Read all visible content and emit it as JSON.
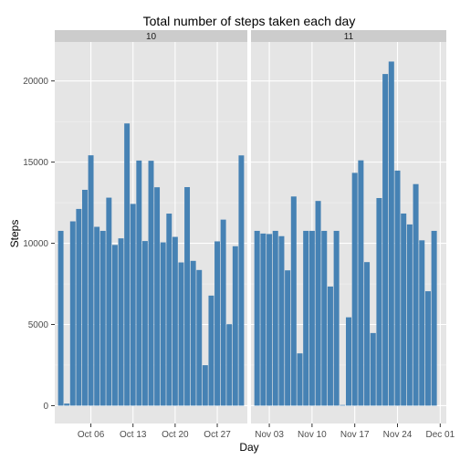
{
  "chart_data": {
    "type": "bar",
    "title": "Total number of steps taken each day",
    "xlabel": "Day",
    "ylabel": "Steps",
    "ylim": [
      -1100,
      22400
    ],
    "yticks": [
      0,
      5000,
      10000,
      15000,
      20000
    ],
    "bar_color": "#4682b4",
    "panel_background": "#e5e5e5",
    "grid_color": "#ffffff",
    "strip_background": "#cccccc",
    "facets": [
      {
        "label": "10",
        "start": "2012-10-01",
        "xlim": [
          "2012-09-30",
          "2012-11-01"
        ],
        "xticks": [
          "Oct 06",
          "Oct 13",
          "Oct 20",
          "Oct 27"
        ],
        "xtick_dates": [
          "2012-10-06",
          "2012-10-13",
          "2012-10-20",
          "2012-10-27"
        ],
        "values": [
          10766,
          126,
          11352,
          12116,
          13294,
          15420,
          11015,
          10766,
          12811,
          9900,
          10304,
          17382,
          12426,
          15098,
          10139,
          15084,
          13452,
          10056,
          11829,
          10395,
          8821,
          13460,
          8918,
          8355,
          2492,
          6778,
          10119,
          11458,
          5018,
          9819,
          15414
        ]
      },
      {
        "label": "11",
        "start": "2012-11-01",
        "xlim": [
          "2012-10-31",
          "2012-12-02"
        ],
        "xticks": [
          "Nov 03",
          "Nov 10",
          "Nov 17",
          "Nov 24",
          "Dec 01"
        ],
        "xtick_dates": [
          "2012-11-03",
          "2012-11-10",
          "2012-11-17",
          "2012-11-24",
          "2012-12-01"
        ],
        "values": [
          10766,
          10600,
          10571,
          10766,
          10439,
          8334,
          12883,
          3219,
          10766,
          10766,
          12608,
          10765,
          7336,
          10766,
          41,
          5441,
          14339,
          15110,
          8841,
          4472,
          12787,
          20427,
          21194,
          14478,
          11834,
          11162,
          13646,
          10183,
          7047,
          10766
        ]
      }
    ]
  }
}
